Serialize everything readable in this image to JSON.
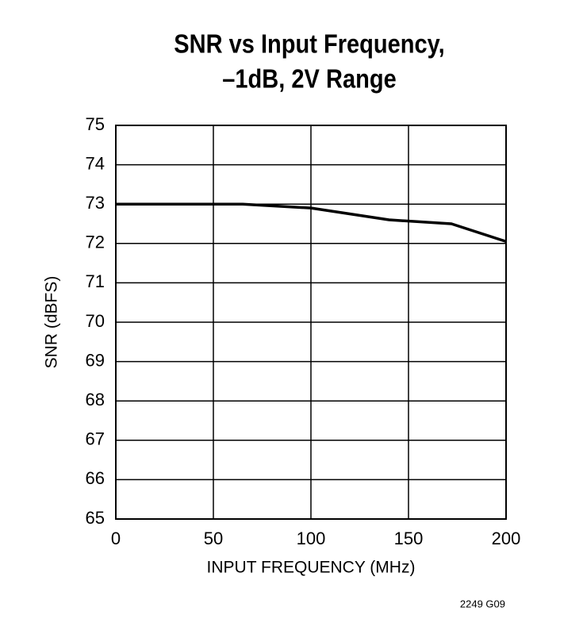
{
  "chart_data": {
    "type": "line",
    "title_lines": [
      "SNR vs Input Frequency,",
      "–1dB, 2V Range"
    ],
    "x_label": "INPUT FREQUENCY (MHz)",
    "y_label": "SNR (dBFS)",
    "note": "2249 G09",
    "x": [
      0,
      65,
      100,
      140,
      172,
      200
    ],
    "series": [
      {
        "color": "#000000",
        "values": [
          73,
          73,
          72.9,
          72.6,
          72.5,
          72.05
        ]
      }
    ],
    "xlim": [
      0,
      200
    ],
    "xticks": [
      0,
      50,
      100,
      150,
      200
    ],
    "ylim": [
      65,
      75
    ],
    "yticks": [
      65,
      66,
      67,
      68,
      69,
      70,
      71,
      72,
      73,
      74,
      75
    ],
    "grid": true
  }
}
